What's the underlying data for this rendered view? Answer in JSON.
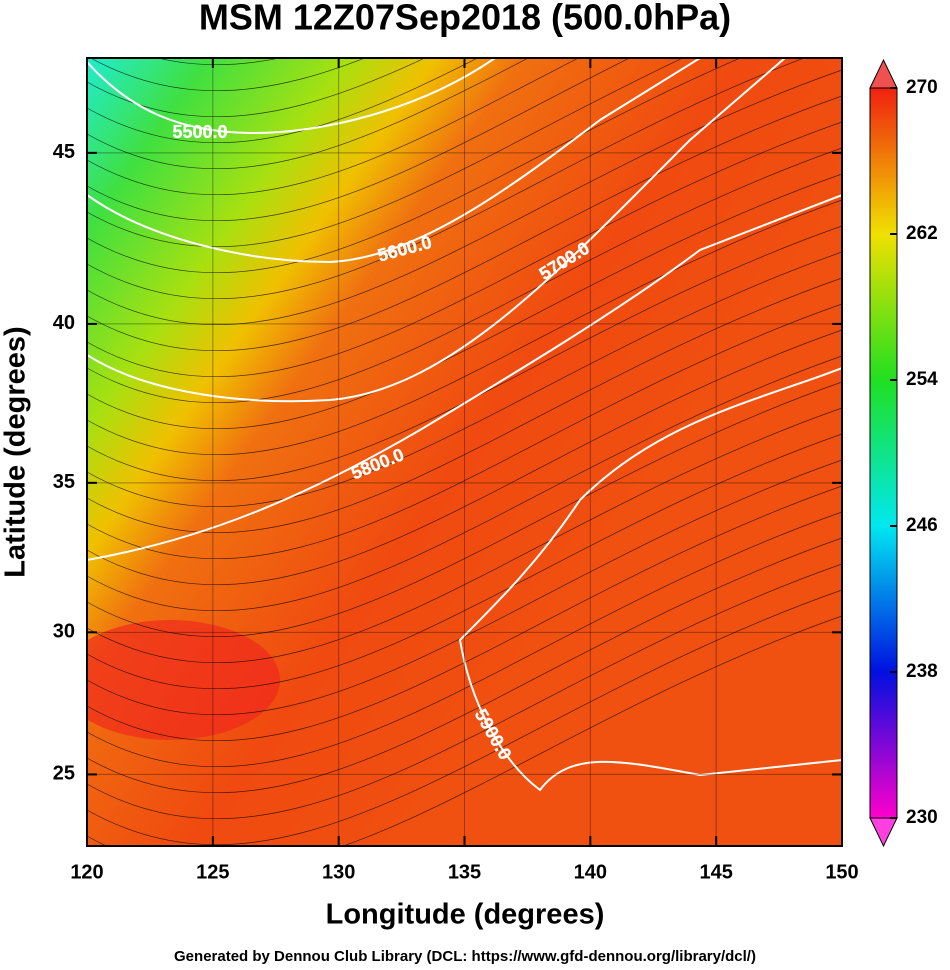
{
  "chart_data": {
    "type": "map",
    "projection": "mercator",
    "title": "MSM 12Z07Sep2018 (500.0hPa)",
    "xlabel": "Longitude (degrees)",
    "ylabel": "Latitude  (degrees)",
    "xlim": [
      120,
      150
    ],
    "xticks": [
      120,
      125,
      130,
      135,
      140,
      145,
      150
    ],
    "ylim": [
      22.4,
      47.6
    ],
    "yticks": [
      25,
      30,
      35,
      40,
      45
    ],
    "grid": true,
    "colorbar": {
      "lim": [
        230,
        270
      ],
      "ticks": [
        230,
        238,
        246,
        254,
        262,
        270
      ],
      "colors": [
        "#ff00cc",
        "#0010e0",
        "#00e8f0",
        "#20e020",
        "#f0e000",
        "#f02010"
      ]
    },
    "contours": [
      {
        "value": 5500,
        "label": "5500.0"
      },
      {
        "value": 5600,
        "label": "5600.0"
      },
      {
        "value": 5700,
        "label": "5700.0"
      },
      {
        "value": 5800,
        "label": "5800.0"
      },
      {
        "value": 5900,
        "label": "5900.0"
      }
    ]
  },
  "footer": "Generated by Dennou Club Library (DCL: https://www.gfd-dennou.org/library/dcl/)"
}
